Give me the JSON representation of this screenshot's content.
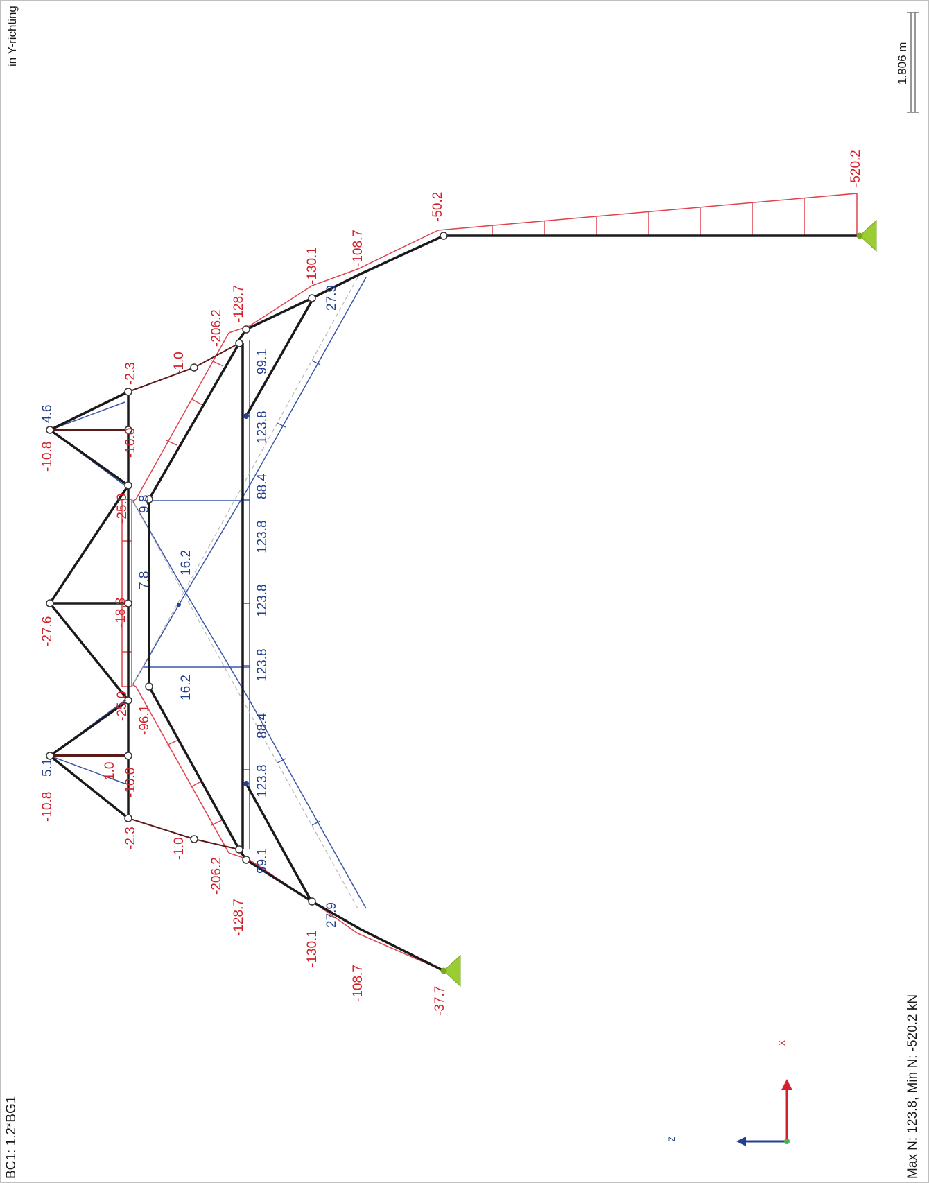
{
  "load_case": "BC1: 1.2*BG1",
  "view_direction": "in Y-richting",
  "summary": "Max N: 123.8, Min N: -520.2 kN",
  "scale_bar": "1.806 m",
  "axes": {
    "x": "X",
    "z": "Z"
  },
  "colors": {
    "negative": "#d4202a",
    "positive": "#233f8f",
    "member": "#1a1a1a",
    "brace": "#5a1a1a",
    "support": "#9acd32"
  },
  "labels": {
    "top": {
      "left_apex_neg": "-10.8",
      "left_apex_pos": "5.1",
      "right_apex_neg": "-10.8",
      "right_apex_pos": "4.6",
      "mid_apex": "-27.6",
      "l_neg_2_3": "-2.3",
      "l_pos_1_0": "1.0",
      "l_neg_1_0": "-1.0",
      "l_neg_10": "-10.0",
      "r_neg_2_3": "-2.3",
      "r_neg_1_0": "-1.0",
      "r_neg_10": "-10.0",
      "l_neg_206": "-206.2",
      "r_neg_206": "-206.2",
      "l_neg_128": "-128.7",
      "r_neg_128": "-128.7",
      "l_neg_130": "-130.1",
      "r_neg_130": "-130.1",
      "l_neg_108": "-108.7",
      "r_neg_108": "-108.7",
      "l_neg_25": "-25.0",
      "r_neg_25": "-25.0",
      "l_neg_96": "-96.1",
      "r_neg_96": "-96.1",
      "mid_neg_18": "-18.8",
      "l_pos_7": "7.8",
      "r_pos_9": "9.8",
      "support_left": "-37.7",
      "column_top": "-50.2",
      "column_base": "-520.2"
    },
    "chord": {
      "l_99": "99.1",
      "r_99": "99.1",
      "l_123_a": "123.8",
      "r_123_a": "123.8",
      "l_88": "88.4",
      "r_88": "88.4",
      "c_123_1": "123.8",
      "c_123_2": "123.8",
      "c_123_3": "123.8",
      "l_16": "16.2",
      "r_16": "16.2",
      "l_27": "27.9",
      "r_27": "27.9"
    }
  }
}
